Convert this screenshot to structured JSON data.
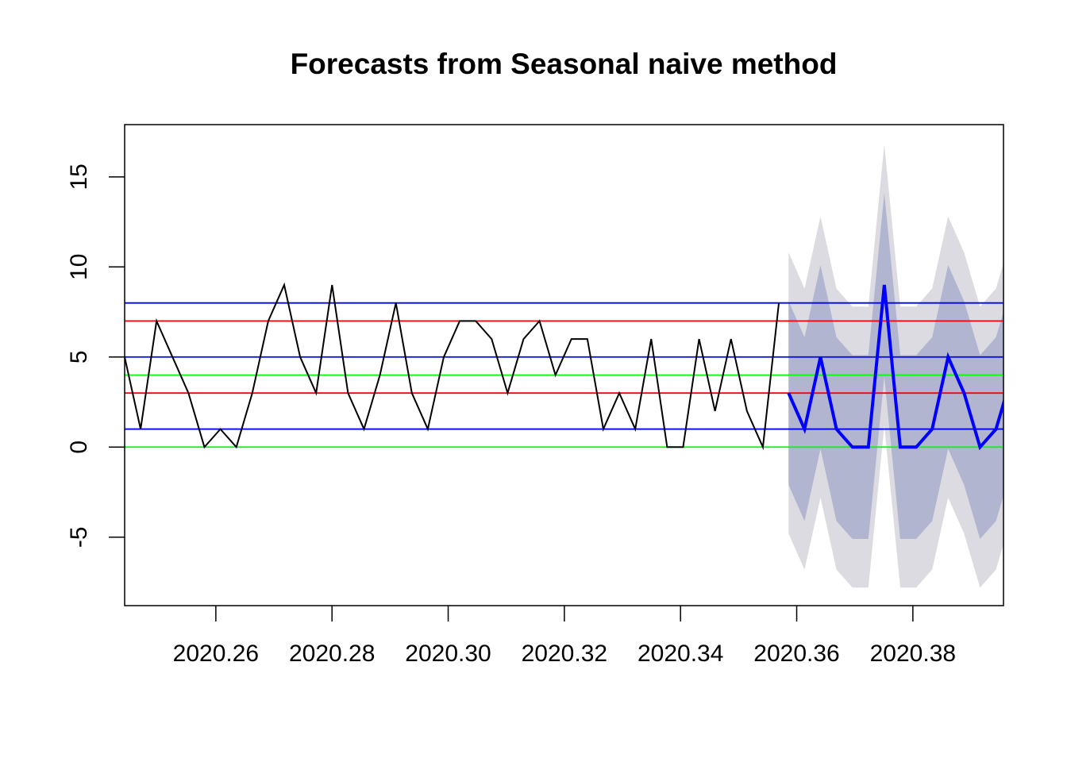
{
  "chart_data": {
    "type": "line",
    "title": "Forecasts from Seasonal naive method",
    "xlabel": "",
    "ylabel": "",
    "xlim": [
      2020.2443,
      2020.3956
    ],
    "ylim": [
      -8.8,
      17.9
    ],
    "x_ticks": [
      "2020.26",
      "2020.28",
      "2020.30",
      "2020.32",
      "2020.34",
      "2020.36",
      "2020.38"
    ],
    "x_tick_values": [
      2020.26,
      2020.28,
      2020.3,
      2020.32,
      2020.34,
      2020.36,
      2020.38
    ],
    "y_ticks": [
      "-5",
      "0",
      "5",
      "10",
      "15"
    ],
    "y_tick_values": [
      -5,
      0,
      5,
      10,
      15
    ],
    "grid": false,
    "observed": {
      "x_start": 2020.2443,
      "x_step": 0.002747,
      "values": [
        5,
        1,
        7,
        5,
        3,
        0,
        1,
        0,
        3,
        7,
        9,
        5,
        3,
        9,
        3,
        1,
        4,
        8,
        3,
        1,
        5,
        7,
        7,
        6,
        3,
        6,
        7,
        4,
        6,
        6,
        1,
        3,
        1,
        6,
        0,
        0,
        6,
        2,
        6,
        2,
        0,
        8
      ],
      "color": "#000000"
    },
    "forecast": {
      "x_start": 2020.3586,
      "x_step": 0.002747,
      "values": [
        3,
        1,
        5,
        1,
        0,
        0,
        9,
        0,
        0,
        1,
        5,
        3,
        0,
        1,
        4
      ],
      "color": "#0000ff",
      "interval_80": {
        "lower": [
          -2.1,
          -4.1,
          -0.1,
          -4.1,
          -5.1,
          -5.1,
          3.9,
          -5.1,
          -5.1,
          -4.1,
          -0.1,
          -2.1,
          -5.1,
          -4.1,
          -1.1
        ],
        "upper": [
          8.1,
          6.1,
          10.1,
          6.1,
          5.1,
          5.1,
          14.1,
          5.1,
          5.1,
          6.1,
          10.1,
          8.1,
          5.1,
          6.1,
          9.1
        ],
        "color": "#b1b5cf"
      },
      "interval_95": {
        "lower": [
          -4.8,
          -6.8,
          -2.8,
          -6.8,
          -7.8,
          -7.8,
          1.2,
          -7.8,
          -7.8,
          -6.8,
          -2.8,
          -4.8,
          -7.8,
          -6.8,
          -3.8
        ],
        "upper": [
          10.8,
          8.8,
          12.8,
          8.8,
          7.8,
          7.8,
          16.8,
          7.8,
          7.8,
          8.8,
          12.8,
          10.8,
          7.8,
          8.8,
          11.8
        ],
        "color": "#dbdbe1"
      }
    },
    "reference_lines": [
      {
        "y": 8,
        "color": "#0000ff"
      },
      {
        "y": 7,
        "color": "#ff0000"
      },
      {
        "y": 5,
        "color": "#0000ff"
      },
      {
        "y": 4,
        "color": "#00ff00"
      },
      {
        "y": 3,
        "color": "#ff0000"
      },
      {
        "y": 1,
        "color": "#0000ff"
      },
      {
        "y": 0,
        "color": "#00ff00"
      }
    ]
  }
}
